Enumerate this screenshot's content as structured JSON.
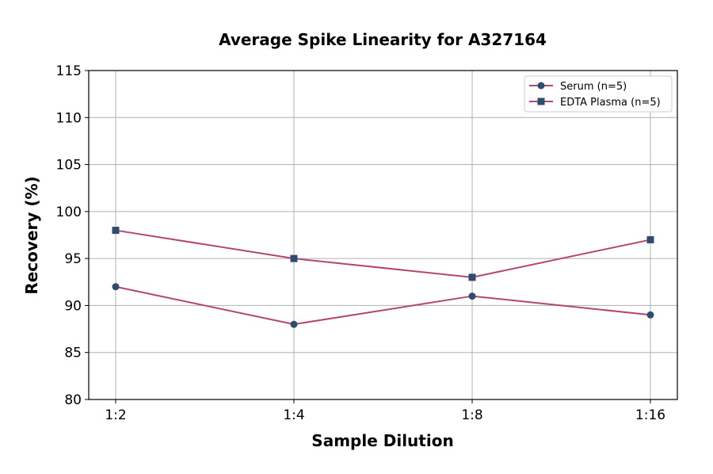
{
  "chart_data": {
    "type": "line",
    "title": "Average Spike Linearity for A327164",
    "xlabel": "Sample Dilution",
    "ylabel": "Recovery (%)",
    "categories": [
      "1:2",
      "1:4",
      "1:8",
      "1:16"
    ],
    "ylim": [
      80,
      115
    ],
    "yticks": [
      80,
      85,
      90,
      95,
      100,
      105,
      110,
      115
    ],
    "grid": true,
    "legend_position": "top-right",
    "series": [
      {
        "name": "Serum (n=5)",
        "values": [
          92,
          88,
          91,
          89
        ],
        "marker": "circle",
        "line_color": "#b5466f",
        "marker_color": "#2f4b6e"
      },
      {
        "name": "EDTA Plasma (n=5)",
        "values": [
          98,
          95,
          93,
          97
        ],
        "marker": "square",
        "line_color": "#b5466f",
        "marker_color": "#2f4b6e"
      }
    ]
  }
}
